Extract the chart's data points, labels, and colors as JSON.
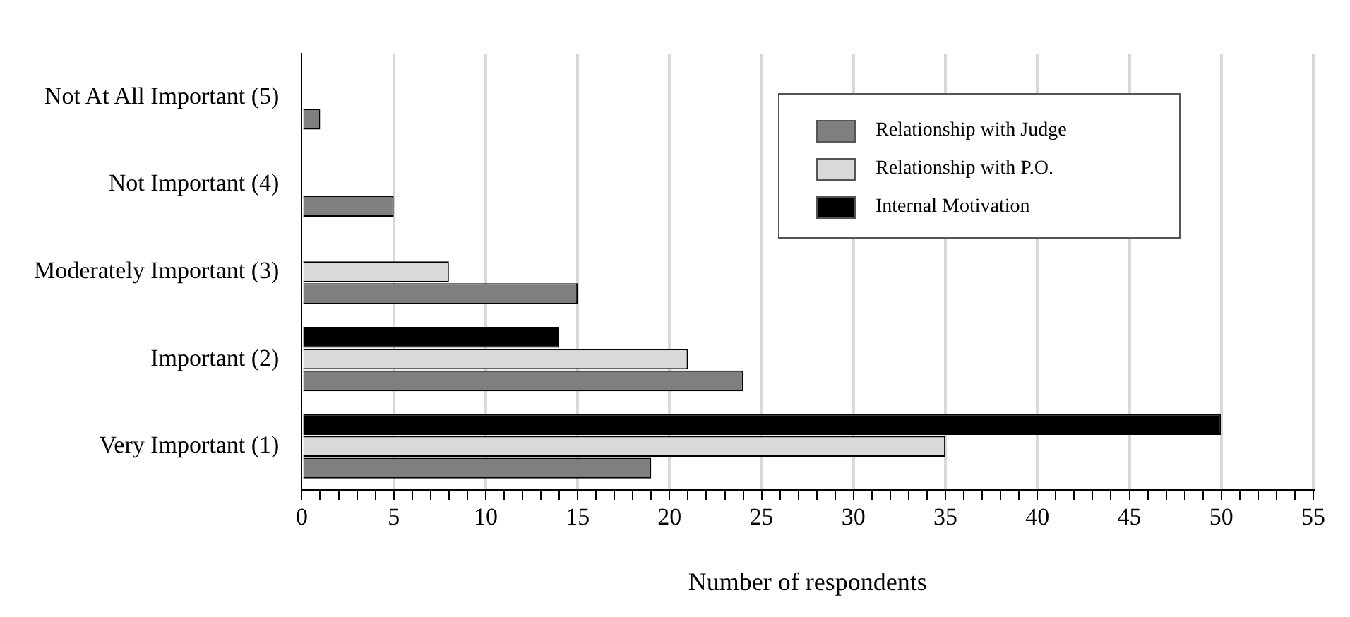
{
  "chart_data": {
    "type": "bar",
    "orientation": "horizontal",
    "xlabel": "Number of respondents",
    "categories": [
      "Not At All Important (5)",
      "Not Important (4)",
      "Moderately Important (3)",
      "Important (2)",
      "Very Important (1)"
    ],
    "series": [
      {
        "name": "Relationship with Judge",
        "color": "#7f7f7f",
        "values": [
          1,
          5,
          15,
          24,
          19
        ]
      },
      {
        "name": "Relationship with P.O.",
        "color": "#d9d9d9",
        "values": [
          0,
          0,
          8,
          21,
          35
        ]
      },
      {
        "name": "Internal Motivation",
        "color": "#000000",
        "values": [
          0,
          0,
          0,
          14,
          50
        ]
      }
    ],
    "xlim": [
      0,
      55
    ],
    "xticks": [
      0,
      {
        "value": 1,
        "label": null
      },
      {
        "value": 2,
        "label": null
      },
      {
        "value": 3,
        "label": null
      },
      {
        "value": 4,
        "label": null
      },
      5,
      {
        "value": 6,
        "label": null
      },
      {
        "value": 7,
        "label": null
      },
      {
        "value": 8,
        "label": null
      },
      {
        "value": 9,
        "label": null
      },
      10,
      {
        "value": 11,
        "label": null
      },
      {
        "value": 12,
        "label": null
      },
      {
        "value": 13,
        "label": null
      },
      {
        "value": 14,
        "label": null
      },
      15,
      {
        "value": 16,
        "label": null
      },
      {
        "value": 17,
        "label": null
      },
      {
        "value": 18,
        "label": null
      },
      {
        "value": 19,
        "label": null
      },
      20,
      {
        "value": 21,
        "label": null
      },
      {
        "value": 22,
        "label": null
      },
      {
        "value": 23,
        "label": null
      },
      {
        "value": 24,
        "label": null
      },
      25,
      {
        "value": 26,
        "label": null
      },
      {
        "value": 27,
        "label": null
      },
      {
        "value": 28,
        "label": null
      },
      {
        "value": 29,
        "label": null
      },
      30,
      {
        "value": 31,
        "label": null
      },
      {
        "value": 32,
        "label": null
      },
      {
        "value": 33,
        "label": null
      },
      {
        "value": 34,
        "label": null
      },
      35,
      {
        "value": 36,
        "label": null
      },
      {
        "value": 37,
        "label": null
      },
      {
        "value": 38,
        "label": null
      },
      {
        "value": 39,
        "label": null
      },
      40,
      {
        "value": 41,
        "label": null
      },
      {
        "value": 42,
        "label": null
      },
      {
        "value": 43,
        "label": null
      },
      {
        "value": 44,
        "label": null
      },
      45,
      {
        "value": 46,
        "label": null
      },
      {
        "value": 47,
        "label": null
      },
      {
        "value": 48,
        "label": null
      },
      {
        "value": 49,
        "label": null
      },
      50,
      {
        "value": 51,
        "label": null
      },
      {
        "value": 52,
        "label": null
      },
      {
        "value": 53,
        "label": null
      },
      {
        "value": 54,
        "label": null
      },
      55
    ],
    "grid": "x",
    "legend": "top right"
  }
}
